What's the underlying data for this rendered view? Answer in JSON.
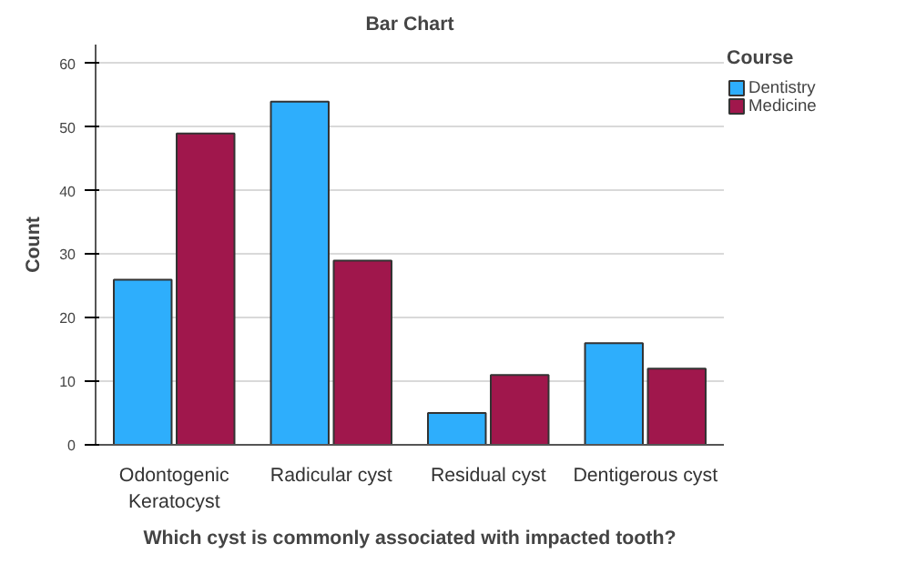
{
  "chart_data": {
    "type": "bar",
    "title": "Bar Chart",
    "xlabel": "Which cyst is commonly associated with impacted tooth?",
    "ylabel": "Count",
    "legend_title": "Course",
    "categories": [
      "Odontogenic Keratocyst",
      "Radicular cyst",
      "Residual cyst",
      "Dentigerous cyst"
    ],
    "series": [
      {
        "name": "Dentistry",
        "color": "#2eaefc",
        "values": [
          26,
          54,
          5,
          16
        ]
      },
      {
        "name": "Medicine",
        "color": "#a0174c",
        "values": [
          49,
          29,
          11,
          12
        ]
      }
    ],
    "ylim": [
      0,
      63
    ],
    "yticks": [
      0,
      10,
      20,
      30,
      40,
      50,
      60
    ],
    "grid": "y",
    "legend": "top right"
  }
}
